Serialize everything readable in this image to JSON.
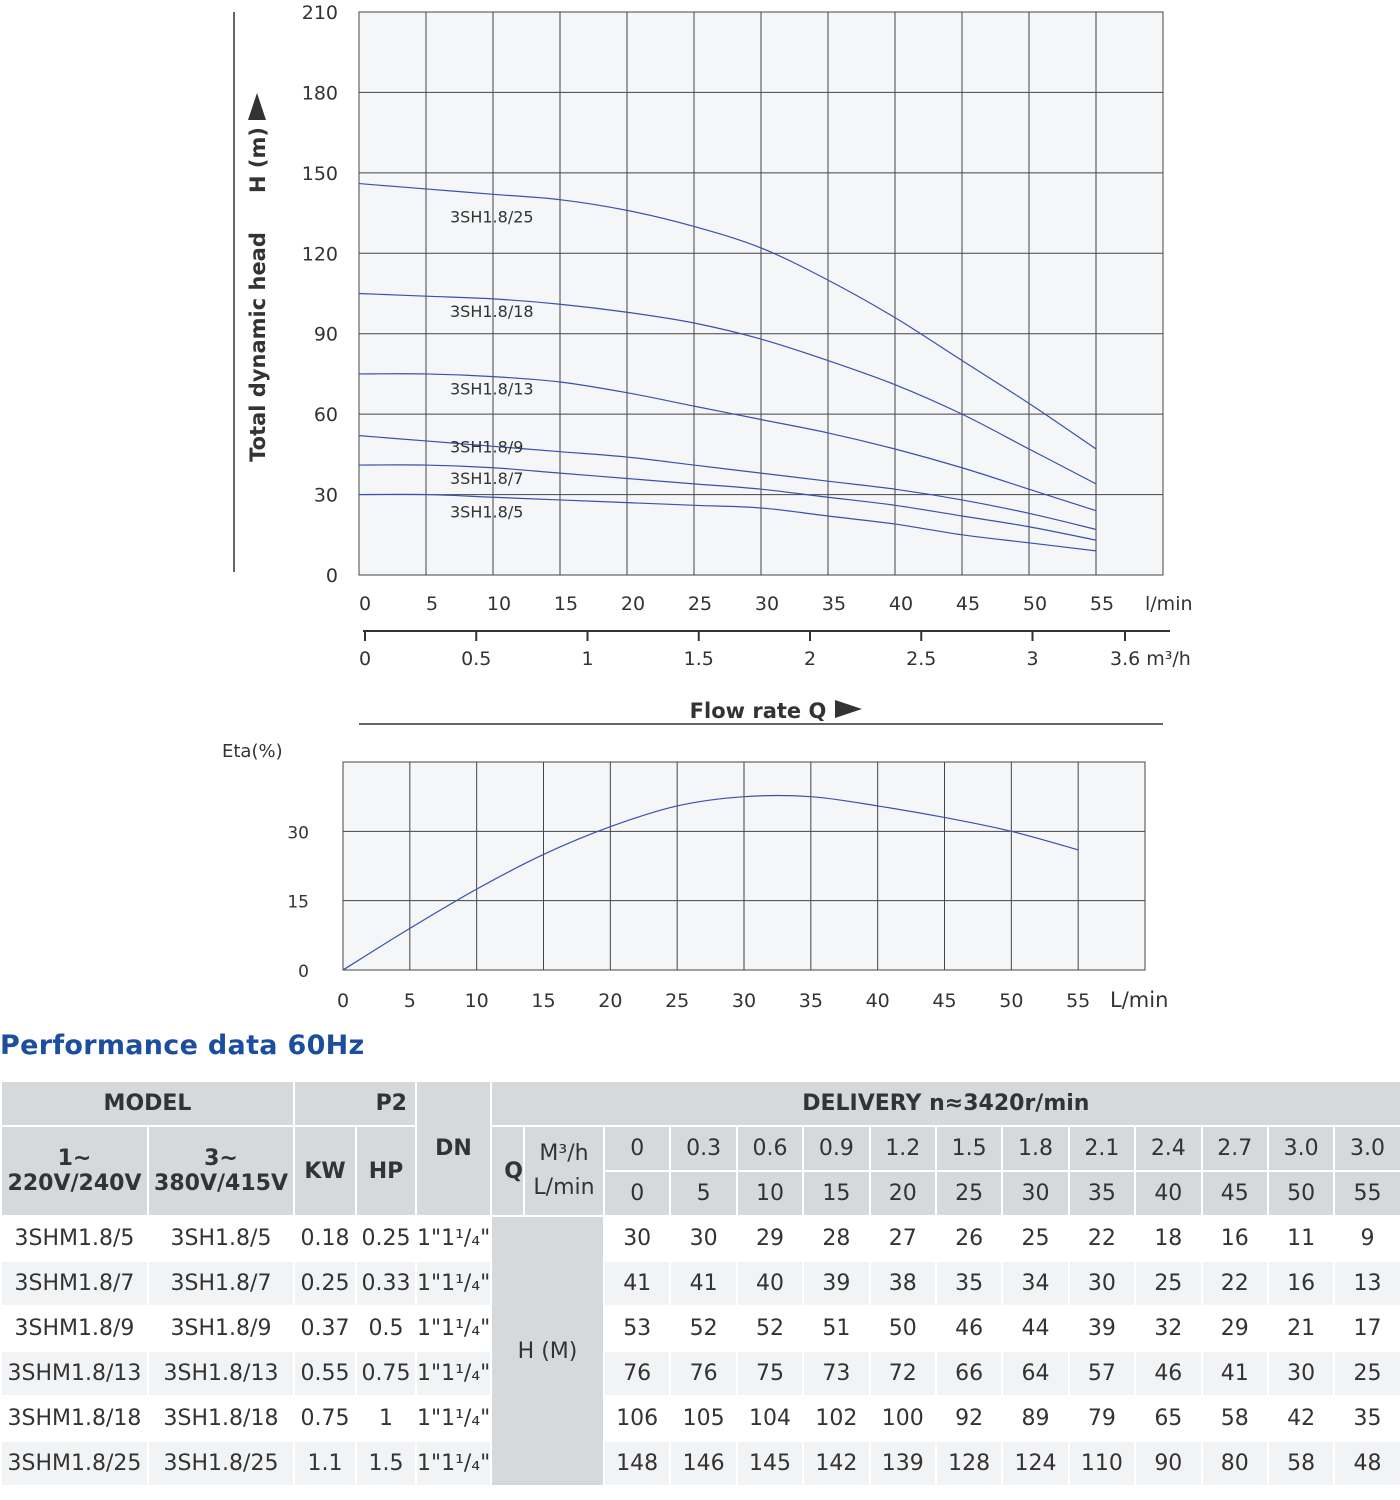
{
  "chart_data": [
    {
      "type": "line",
      "ylabel": "Total dynamic head",
      "ylabel_unit": "H (m)",
      "xlabel": "Flow rate   Q",
      "x_unit": "l/min",
      "x2_unit": "3.6 m³/h",
      "xlim": [
        0,
        60
      ],
      "ylim": [
        0,
        210
      ],
      "yticks": [
        "0",
        "30",
        "60",
        "90",
        "120",
        "150",
        "180",
        "210"
      ],
      "xticks": [
        "0",
        "5",
        "10",
        "15",
        "20",
        "25",
        "30",
        "35",
        "40",
        "45",
        "50",
        "55"
      ],
      "x2ticks": [
        "0",
        "0.5",
        "1",
        "1.5",
        "2",
        "2.5",
        "3"
      ],
      "grid": true,
      "line_color": "#3a4fb0",
      "x": [
        0,
        5,
        10,
        15,
        20,
        25,
        30,
        35,
        40,
        45,
        50,
        55
      ],
      "series": [
        {
          "name": "3SH1.8/25",
          "values": [
            146,
            144,
            142,
            140,
            136,
            130,
            122,
            110,
            96,
            80,
            64,
            47
          ]
        },
        {
          "name": "3SH1.8/18",
          "values": [
            105,
            104,
            103,
            101,
            98,
            94,
            88,
            80,
            71,
            60,
            47,
            34
          ]
        },
        {
          "name": "3SH1.8/13",
          "values": [
            75,
            75,
            74,
            72,
            68,
            63,
            58,
            53,
            47,
            40,
            32,
            24
          ]
        },
        {
          "name": "3SH1.8/9",
          "values": [
            52,
            50,
            48,
            46,
            44,
            41,
            38,
            35,
            32,
            28,
            23,
            17
          ]
        },
        {
          "name": "3SH1.8/7",
          "values": [
            41,
            41,
            40,
            38,
            36,
            34,
            32,
            29,
            26,
            22,
            18,
            13
          ]
        },
        {
          "name": "3SH1.8/5",
          "values": [
            30,
            30,
            29,
            28,
            27,
            26,
            25,
            22,
            19,
            15,
            12,
            9
          ]
        }
      ]
    },
    {
      "type": "line",
      "ylabel": "Eta(%)",
      "x_unit": "L/min",
      "xlim": [
        0,
        60
      ],
      "ylim": [
        0,
        45
      ],
      "yticks": [
        "0",
        "15",
        "30"
      ],
      "xticks": [
        "0",
        "5",
        "10",
        "15",
        "20",
        "25",
        "30",
        "35",
        "40",
        "45",
        "50",
        "55"
      ],
      "grid": true,
      "x": [
        0,
        5,
        10,
        15,
        20,
        25,
        30,
        35,
        40,
        45,
        50,
        55
      ],
      "values": [
        0,
        9,
        17.5,
        25,
        31,
        35.5,
        37.5,
        37.5,
        35.5,
        33,
        30,
        26
      ]
    }
  ],
  "table": {
    "title": "Performance data 60Hz",
    "model": "MODEL",
    "p2": "P2",
    "dn": "DN",
    "delivery": "DELIVERY  n≈3420r/min",
    "ph1": "1~",
    "v1": "220V/240V",
    "ph3": "3~",
    "v3": "380V/415V",
    "kw": "KW",
    "hp": "HP",
    "q": "Q",
    "m3h": "M³/h",
    "lmin": "L/min",
    "hm": "H (M)",
    "q_m3h": [
      "0",
      "0.3",
      "0.6",
      "0.9",
      "1.2",
      "1.5",
      "1.8",
      "2.1",
      "2.4",
      "2.7",
      "3.0",
      "3.0"
    ],
    "q_lmin": [
      "0",
      "5",
      "10",
      "15",
      "20",
      "25",
      "30",
      "35",
      "40",
      "45",
      "50",
      "55"
    ],
    "rows": [
      {
        "m1": "3SHM1.8/5",
        "m3": "3SH1.8/5",
        "kw": "0.18",
        "hp": "0.25",
        "dn": "1\"1¹/₄\"",
        "h": [
          "30",
          "30",
          "29",
          "28",
          "27",
          "26",
          "25",
          "22",
          "18",
          "16",
          "11",
          "9"
        ]
      },
      {
        "m1": "3SHM1.8/7",
        "m3": "3SH1.8/7",
        "kw": "0.25",
        "hp": "0.33",
        "dn": "1\"1¹/₄\"",
        "h": [
          "41",
          "41",
          "40",
          "39",
          "38",
          "35",
          "34",
          "30",
          "25",
          "22",
          "16",
          "13"
        ]
      },
      {
        "m1": "3SHM1.8/9",
        "m3": "3SH1.8/9",
        "kw": "0.37",
        "hp": "0.5",
        "dn": "1\"1¹/₄\"",
        "h": [
          "53",
          "52",
          "52",
          "51",
          "50",
          "46",
          "44",
          "39",
          "32",
          "29",
          "21",
          "17"
        ]
      },
      {
        "m1": "3SHM1.8/13",
        "m3": "3SH1.8/13",
        "kw": "0.55",
        "hp": "0.75",
        "dn": "1\"1¹/₄\"",
        "h": [
          "76",
          "76",
          "75",
          "73",
          "72",
          "66",
          "64",
          "57",
          "46",
          "41",
          "30",
          "25"
        ]
      },
      {
        "m1": "3SHM1.8/18",
        "m3": "3SH1.8/18",
        "kw": "0.75",
        "hp": "1",
        "dn": "1\"1¹/₄\"",
        "h": [
          "106",
          "105",
          "104",
          "102",
          "100",
          "92",
          "89",
          "79",
          "65",
          "58",
          "42",
          "35"
        ]
      },
      {
        "m1": "3SHM1.8/25",
        "m3": "3SH1.8/25",
        "kw": "1.1",
        "hp": "1.5",
        "dn": "1\"1¹/₄\"",
        "h": [
          "148",
          "146",
          "145",
          "142",
          "139",
          "128",
          "124",
          "110",
          "90",
          "80",
          "58",
          "48"
        ]
      }
    ]
  }
}
